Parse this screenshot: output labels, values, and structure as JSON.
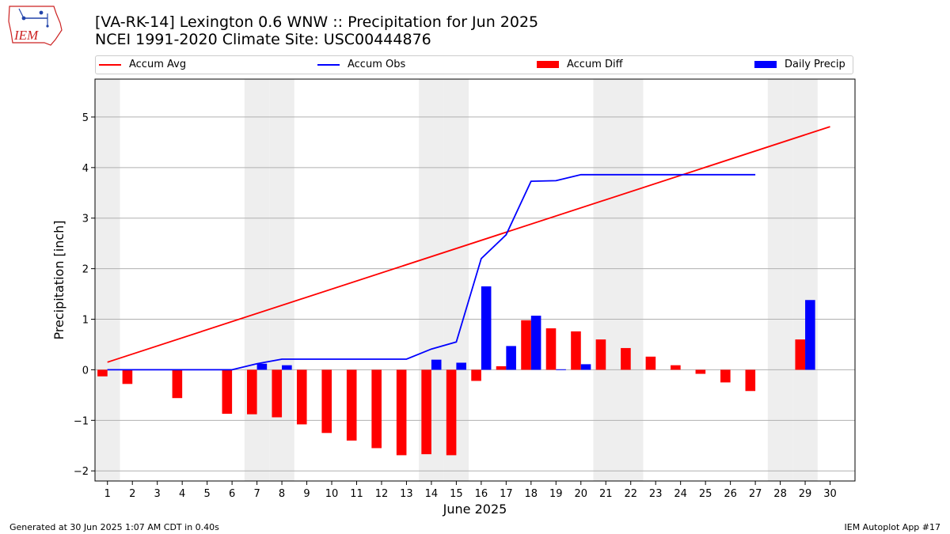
{
  "title_line1": "[VA-RK-14] Lexington 0.6 WNW :: Precipitation for Jun 2025",
  "title_line2": "NCEI 1991-2020 Climate Site: USC00444876",
  "footer_left": "Generated at 30 Jun 2025 1:07 AM CDT in 0.40s",
  "footer_right": "IEM Autoplot App #17",
  "logo_text": "IEM",
  "legend": [
    {
      "label": "Accum Avg",
      "kind": "line",
      "color": "#ff0000"
    },
    {
      "label": "Accum Obs",
      "kind": "line",
      "color": "#0000ff"
    },
    {
      "label": "Accum Diff",
      "kind": "box",
      "color": "#ff0000"
    },
    {
      "label": "Daily Precip",
      "kind": "box",
      "color": "#0000ff"
    }
  ],
  "chart_data": {
    "type": "bar",
    "xlabel": "June 2025",
    "ylabel": "Precipitation [inch]",
    "xlim": [
      0.5,
      31
    ],
    "ylim": [
      -2.2,
      5.75
    ],
    "xticks": [
      1,
      2,
      3,
      4,
      5,
      6,
      7,
      8,
      9,
      10,
      11,
      12,
      13,
      14,
      15,
      16,
      17,
      18,
      19,
      20,
      21,
      22,
      23,
      24,
      25,
      26,
      27,
      28,
      29,
      30
    ],
    "yticks": [
      -2,
      -1,
      0,
      1,
      2,
      3,
      4,
      5
    ],
    "ytick_labels": [
      "−2",
      "−1",
      "0",
      "1",
      "2",
      "3",
      "4",
      "5"
    ],
    "weekend_days": [
      1,
      7,
      8,
      14,
      15,
      21,
      22,
      28,
      29
    ],
    "grid": true,
    "series": [
      {
        "name": "Accum Avg",
        "kind": "line",
        "color": "#ff0000",
        "x": [
          1,
          30
        ],
        "values": [
          0.15,
          4.81
        ]
      },
      {
        "name": "Accum Obs",
        "kind": "line",
        "color": "#0000ff",
        "x": [
          1,
          2,
          6,
          7,
          8,
          9,
          10,
          11,
          12,
          13,
          14,
          15,
          16,
          17,
          18,
          19,
          20,
          21,
          22,
          23,
          24,
          25,
          26,
          27
        ],
        "values": [
          0.0,
          0.0,
          0.0,
          0.12,
          0.21,
          0.21,
          0.21,
          0.21,
          0.21,
          0.21,
          0.41,
          0.55,
          2.2,
          2.67,
          3.73,
          3.74,
          3.86,
          3.86,
          3.86,
          3.86,
          3.86,
          3.86,
          3.86,
          3.86
        ]
      },
      {
        "name": "Accum Diff",
        "kind": "bar",
        "color": "#ff0000",
        "x": [
          1,
          2,
          4,
          6,
          7,
          8,
          9,
          10,
          11,
          12,
          13,
          14,
          15,
          16,
          17,
          18,
          19,
          20,
          21,
          22,
          23,
          24,
          25,
          26,
          27,
          29
        ],
        "values": [
          -0.13,
          -0.28,
          -0.56,
          -0.87,
          -0.88,
          -0.94,
          -1.08,
          -1.25,
          -1.4,
          -1.55,
          -1.69,
          -1.67,
          -1.69,
          -0.22,
          0.07,
          0.98,
          0.82,
          0.76,
          0.6,
          0.43,
          0.26,
          0.09,
          -0.08,
          -0.25,
          -0.42,
          0.6
        ]
      },
      {
        "name": "Daily Precip",
        "kind": "bar",
        "color": "#0000ff",
        "x": [
          1,
          7,
          8,
          14,
          15,
          16,
          17,
          18,
          19,
          20,
          29
        ],
        "values": [
          0.01,
          0.12,
          0.09,
          0.2,
          0.14,
          1.65,
          0.47,
          1.07,
          0.01,
          0.11,
          1.38
        ]
      }
    ]
  }
}
